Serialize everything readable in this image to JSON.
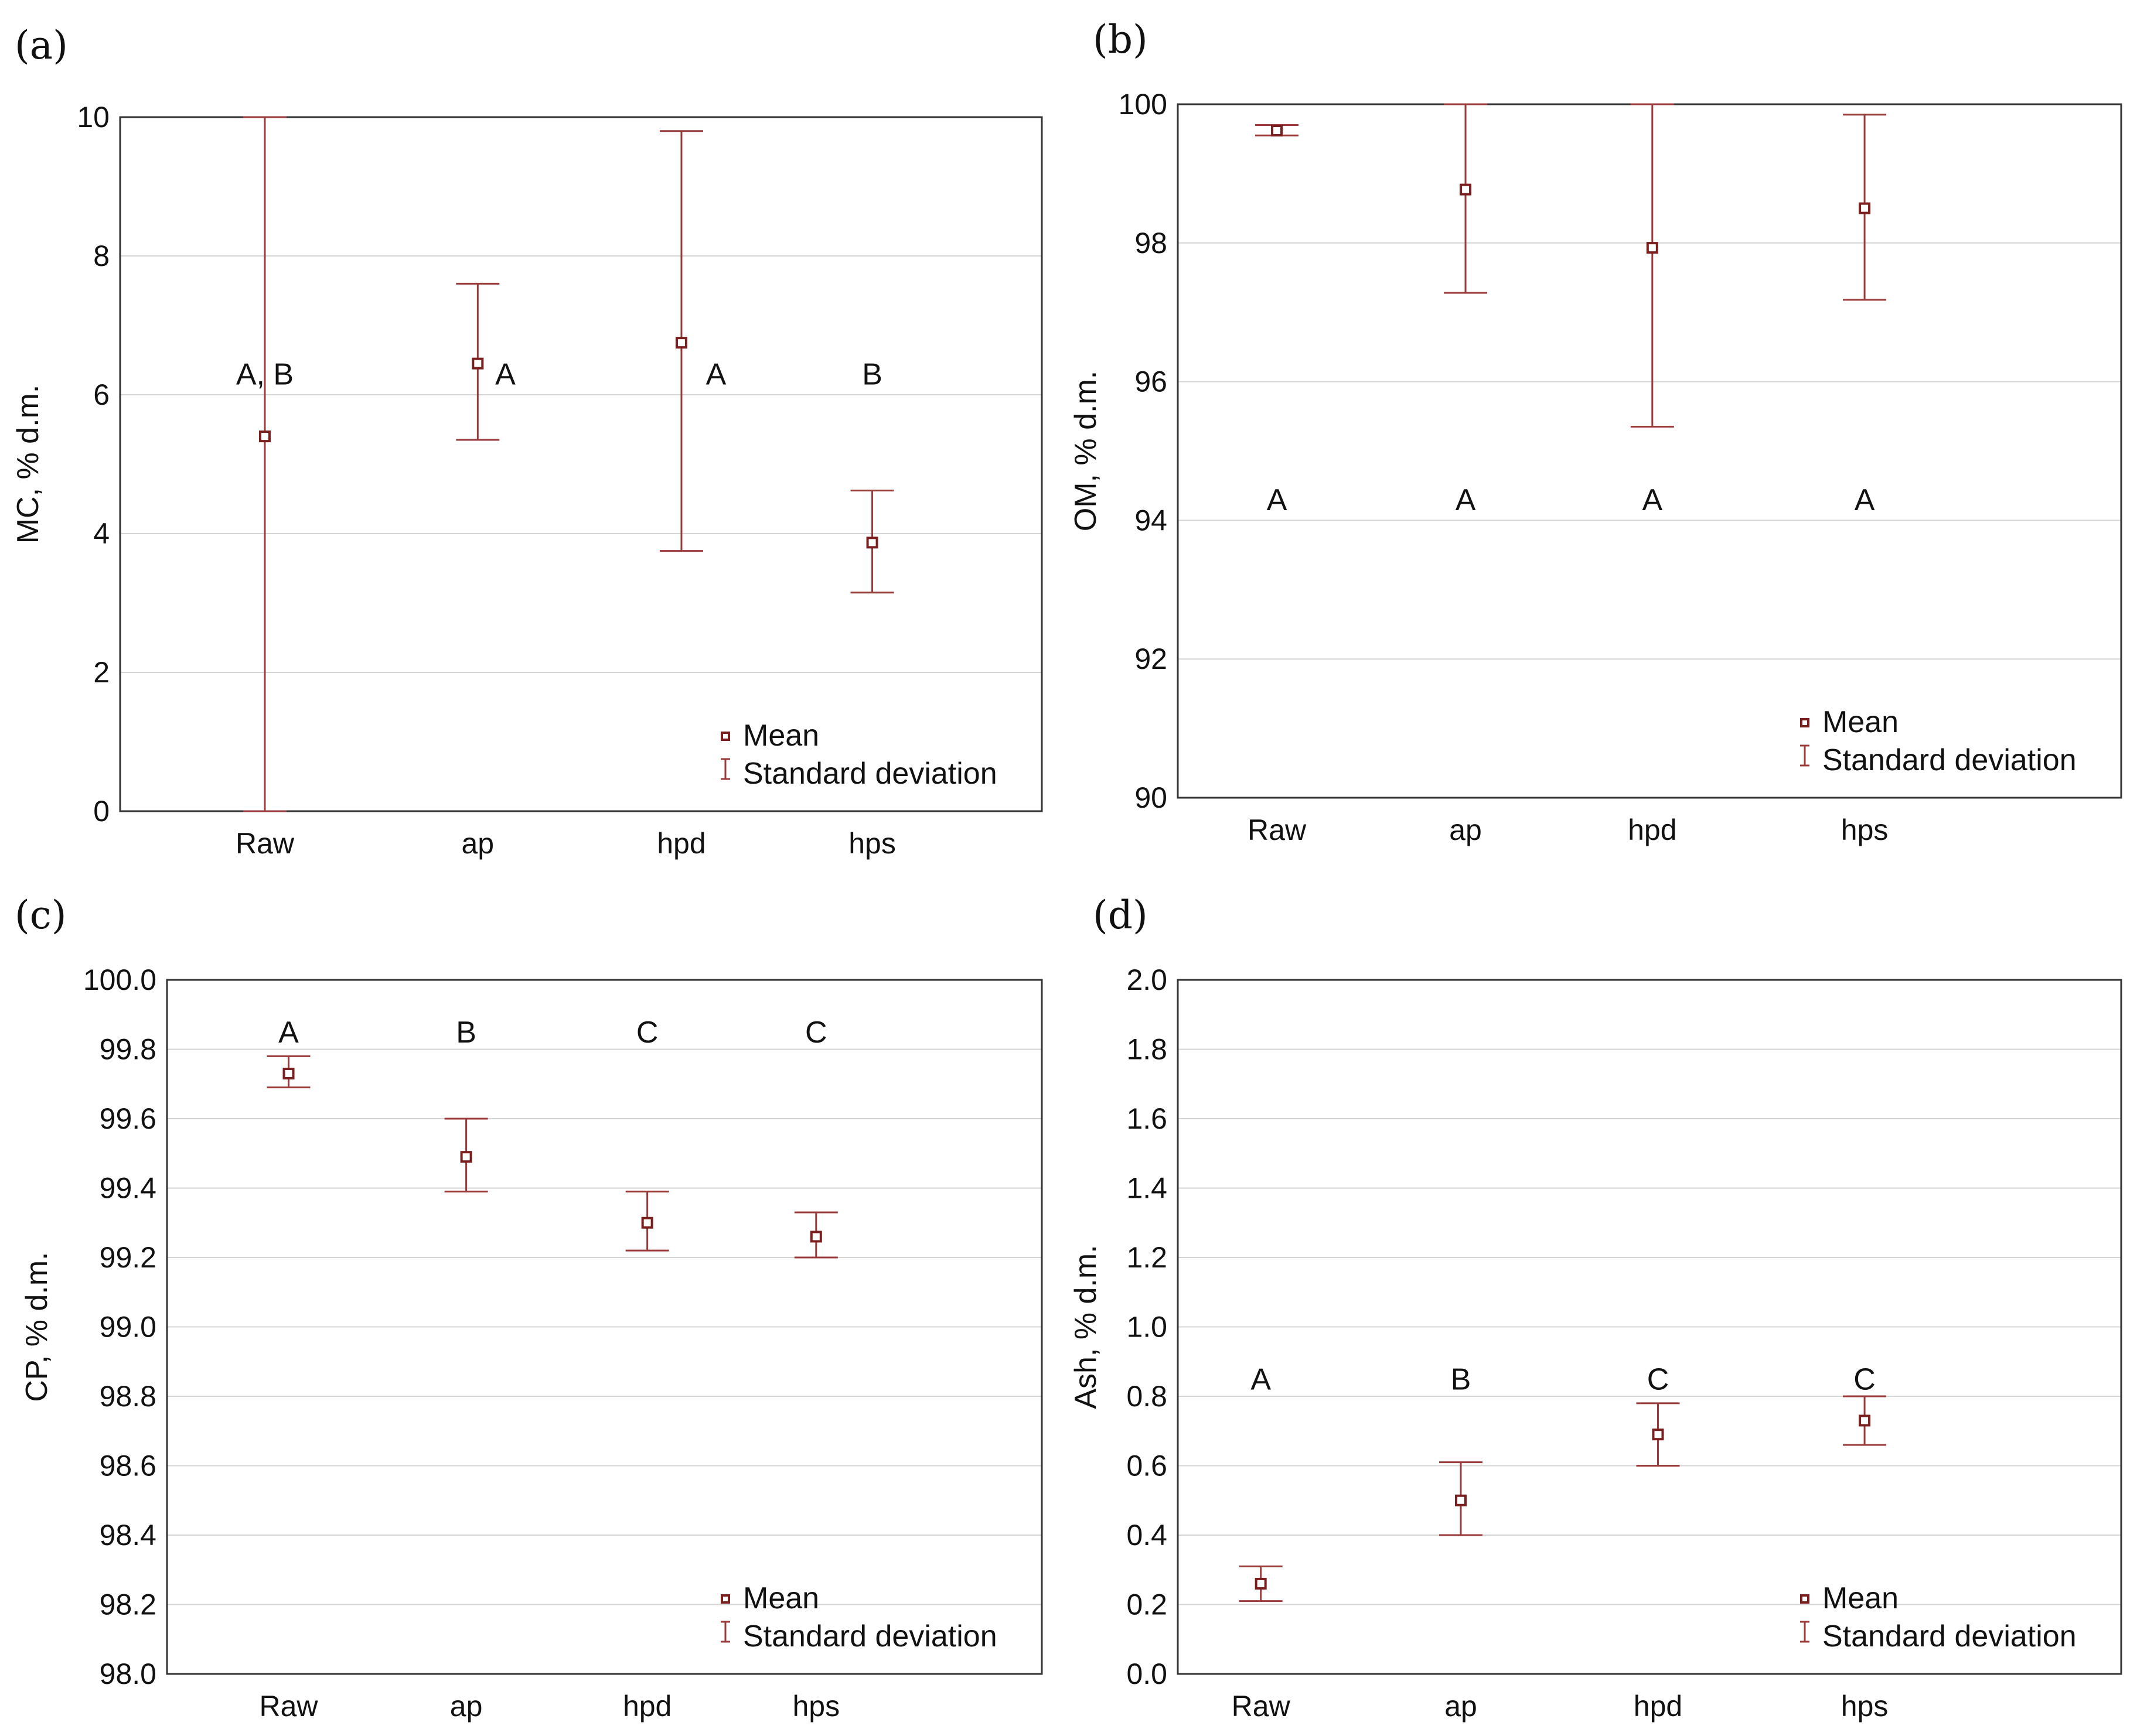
{
  "legend": {
    "mean": "Mean",
    "sd": "Standard deviation"
  },
  "colors": {
    "marker": "#7a1e1e",
    "whisker": "#9b3a3a",
    "grid": "#d4d4d4"
  },
  "chart_data": [
    {
      "panel": "(a)",
      "type": "scatter",
      "title": "",
      "xlabel": "",
      "ylabel": "MC, % d.m.",
      "categories": [
        "Raw",
        "ap",
        "hpd",
        "hps"
      ],
      "ylim": [
        0,
        10
      ],
      "yticks": [
        "0",
        "2",
        "4",
        "6",
        "8",
        "10"
      ],
      "series": [
        {
          "name": "Mean",
          "values": [
            5.4,
            6.45,
            6.75,
            3.87
          ],
          "lower": [
            0.0,
            5.35,
            3.75,
            3.15
          ],
          "upper": [
            10.0,
            7.6,
            9.8,
            4.62
          ]
        }
      ],
      "group_letters": [
        "A, B",
        "A",
        "A",
        "B"
      ],
      "letter_y": [
        6.3,
        6.3,
        6.3,
        6.3
      ],
      "letter_dx": [
        0,
        0.12,
        0.15,
        0
      ]
    },
    {
      "panel": "(b)",
      "type": "scatter",
      "title": "",
      "xlabel": "",
      "ylabel": "OM, % d.m.",
      "categories": [
        "Raw",
        "ap",
        "hpd",
        "hps"
      ],
      "ylim": [
        90,
        100
      ],
      "yticks": [
        "90",
        "92",
        "94",
        "96",
        "98",
        "100"
      ],
      "series": [
        {
          "name": "Mean",
          "values": [
            99.62,
            98.77,
            97.93,
            98.5
          ],
          "lower": [
            99.55,
            97.28,
            95.35,
            97.18
          ],
          "upper": [
            99.7,
            100.0,
            100.0,
            99.85
          ]
        }
      ],
      "group_letters": [
        "A",
        "A",
        "A",
        "A"
      ],
      "letter_y": [
        94.3,
        94.3,
        94.3,
        94.3
      ],
      "letter_dx": [
        0,
        0,
        0,
        0
      ]
    },
    {
      "panel": "(c)",
      "type": "scatter",
      "title": "",
      "xlabel": "",
      "ylabel": "CP, % d.m.",
      "categories": [
        "Raw",
        "ap",
        "hpd",
        "hps"
      ],
      "ylim": [
        98.0,
        100.0
      ],
      "yticks": [
        "98.0",
        "98.2",
        "98.4",
        "98.6",
        "98.8",
        "99.0",
        "99.2",
        "99.4",
        "99.6",
        "99.8",
        "100.0"
      ],
      "series": [
        {
          "name": "Mean",
          "values": [
            99.73,
            99.49,
            99.3,
            99.26
          ],
          "lower": [
            99.69,
            99.39,
            99.22,
            99.2
          ],
          "upper": [
            99.78,
            99.6,
            99.39,
            99.33
          ]
        }
      ],
      "group_letters": [
        "A",
        "B",
        "C",
        "C"
      ],
      "letter_y": [
        99.85,
        99.85,
        99.85,
        99.85
      ],
      "letter_dx": [
        0,
        0,
        0,
        0
      ]
    },
    {
      "panel": "(d)",
      "type": "scatter",
      "title": "",
      "xlabel": "",
      "ylabel": "Ash, % d.m.",
      "categories": [
        "Raw",
        "ap",
        "hpd",
        "hps"
      ],
      "ylim": [
        0.0,
        2.0
      ],
      "yticks": [
        "0.0",
        "0.2",
        "0.4",
        "0.6",
        "0.8",
        "1.0",
        "1.2",
        "1.4",
        "1.6",
        "1.8",
        "2.0"
      ],
      "series": [
        {
          "name": "Mean",
          "values": [
            0.26,
            0.5,
            0.69,
            0.73
          ],
          "lower": [
            0.21,
            0.4,
            0.6,
            0.66
          ],
          "upper": [
            0.31,
            0.61,
            0.78,
            0.8
          ]
        }
      ],
      "group_letters": [
        "A",
        "B",
        "C",
        "C"
      ],
      "letter_y": [
        0.85,
        0.85,
        0.85,
        0.85
      ],
      "letter_dx": [
        0,
        0,
        0,
        0
      ]
    }
  ]
}
